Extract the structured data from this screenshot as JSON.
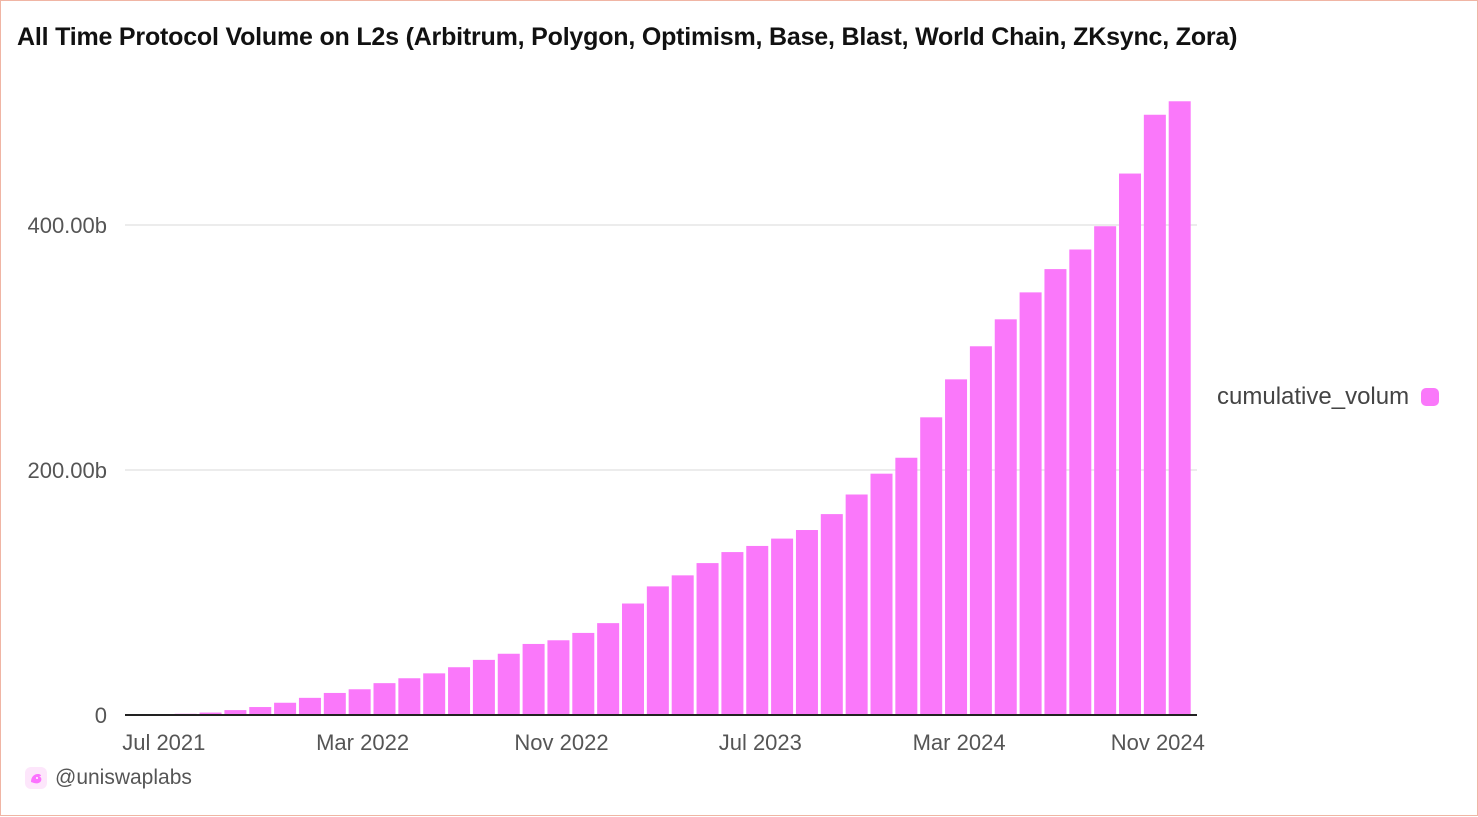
{
  "chart_data": {
    "type": "bar",
    "title": "All Time Protocol Volume on L2s (Arbitrum, Polygon, Optimism, Base, Blast, World Chain, ZKsync, Zora)",
    "xlabel": "",
    "ylabel": "",
    "x_tick_labels": [
      "Jul 2021",
      "Mar 2022",
      "Nov 2022",
      "Jul 2023",
      "Mar 2024",
      "Nov 2024"
    ],
    "y_tick_labels": [
      "0",
      "200.00b",
      "400.00b"
    ],
    "y_ticks": [
      0,
      200,
      400
    ],
    "ylim": [
      0,
      500
    ],
    "unit": "b",
    "grid": true,
    "legend_position": "right",
    "categories": [
      "Jun 2021",
      "Jul 2021",
      "Aug 2021",
      "Sep 2021",
      "Oct 2021",
      "Nov 2021",
      "Dec 2021",
      "Jan 2022",
      "Feb 2022",
      "Mar 2022",
      "Apr 2022",
      "May 2022",
      "Jun 2022",
      "Jul 2022",
      "Aug 2022",
      "Sep 2022",
      "Oct 2022",
      "Nov 2022",
      "Dec 2022",
      "Jan 2023",
      "Feb 2023",
      "Mar 2023",
      "Apr 2023",
      "May 2023",
      "Jun 2023",
      "Jul 2023",
      "Aug 2023",
      "Sep 2023",
      "Oct 2023",
      "Nov 2023",
      "Dec 2023",
      "Jan 2024",
      "Feb 2024",
      "Mar 2024",
      "Apr 2024",
      "May 2024",
      "Jun 2024",
      "Jul 2024",
      "Aug 2024",
      "Sep 2024",
      "Oct 2024",
      "Nov 2024",
      "Dec 2024"
    ],
    "series": [
      {
        "name": "cumulative_volum",
        "color": "#fa78fa",
        "values": [
          0.1,
          0.3,
          1,
          2,
          4,
          6.5,
          10,
          14,
          18,
          21,
          26,
          30,
          34,
          39,
          45,
          50,
          58,
          61,
          67,
          75,
          91,
          105,
          114,
          124,
          133,
          138,
          144,
          151,
          164,
          180,
          197,
          210,
          243,
          274,
          301,
          323,
          345,
          364,
          380,
          399,
          442,
          490,
          501
        ]
      }
    ]
  },
  "footer": {
    "handle": "@uniswaplabs",
    "icon": "uniswap-unicorn-icon"
  },
  "colors": {
    "bar": "#fa78fa",
    "border": "#f0b5a4",
    "logo": "#fc72ff"
  }
}
